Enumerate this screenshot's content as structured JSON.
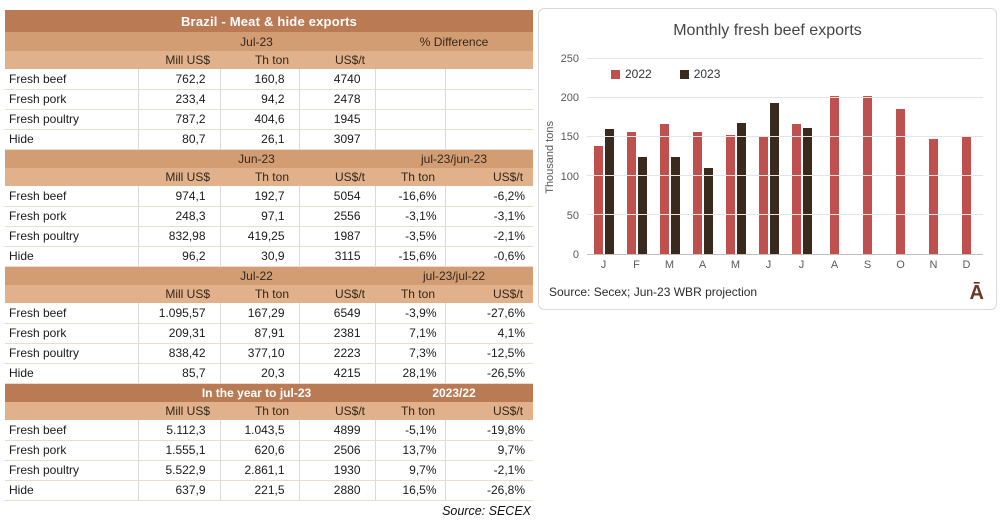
{
  "table": {
    "title": "Brazil - Meat & hide exports",
    "source": "Source: SECEX",
    "sections": [
      {
        "period": "Jul-23",
        "diff_label": "% Difference",
        "style": "tan",
        "col_headers": [
          "Mill US$",
          "Th ton",
          "US$/t",
          "",
          ""
        ],
        "rows": [
          {
            "label": "Fresh beef",
            "values": [
              "762,2",
              "160,8",
              "4740",
              "",
              ""
            ]
          },
          {
            "label": "Fresh pork",
            "values": [
              "233,4",
              "94,2",
              "2478",
              "",
              ""
            ]
          },
          {
            "label": "Fresh poultry",
            "values": [
              "787,2",
              "404,6",
              "1945",
              "",
              ""
            ]
          },
          {
            "label": "Hide",
            "values": [
              "80,7",
              "26,1",
              "3097",
              "",
              ""
            ]
          }
        ]
      },
      {
        "period": "Jun-23",
        "diff_label": "jul-23/jun-23",
        "style": "tan",
        "col_headers": [
          "Mill US$",
          "Th ton",
          "US$/t",
          "Th ton",
          "US$/t"
        ],
        "rows": [
          {
            "label": "Fresh beef",
            "values": [
              "974,1",
              "192,7",
              "5054",
              "-16,6%",
              "-6,2%"
            ]
          },
          {
            "label": "Fresh pork",
            "values": [
              "248,3",
              "97,1",
              "2556",
              "-3,1%",
              "-3,1%"
            ]
          },
          {
            "label": "Fresh poultry",
            "values": [
              "832,98",
              "419,25",
              "1987",
              "-3,5%",
              "-2,1%"
            ]
          },
          {
            "label": "Hide",
            "values": [
              "96,2",
              "30,9",
              "3115",
              "-15,6%",
              "-0,6%"
            ]
          }
        ]
      },
      {
        "period": "Jul-22",
        "diff_label": "jul-23/jul-22",
        "style": "tan",
        "col_headers": [
          "Mill US$",
          "Th ton",
          "US$/t",
          "Th ton",
          "US$/t"
        ],
        "rows": [
          {
            "label": "Fresh beef",
            "values": [
              "1.095,57",
              "167,29",
              "6549",
              "-3,9%",
              "-27,6%"
            ]
          },
          {
            "label": "Fresh pork",
            "values": [
              "209,31",
              "87,91",
              "2381",
              "7,1%",
              "4,1%"
            ]
          },
          {
            "label": "Fresh poultry",
            "values": [
              "838,42",
              "377,10",
              "2223",
              "7,3%",
              "-12,5%"
            ]
          },
          {
            "label": "Hide",
            "values": [
              "85,7",
              "20,3",
              "4215",
              "28,1%",
              "-26,5%"
            ]
          }
        ]
      },
      {
        "period": "In the year to jul-23",
        "diff_label": "2023/22",
        "style": "dark",
        "col_headers": [
          "Mill US$",
          "Th ton",
          "US$/t",
          "Th ton",
          "US$/t"
        ],
        "rows": [
          {
            "label": "Fresh beef",
            "values": [
              "5.112,3",
              "1.043,5",
              "4899",
              "-5,1%",
              "-19,8%"
            ]
          },
          {
            "label": "Fresh pork",
            "values": [
              "1.555,1",
              "620,6",
              "2506",
              "13,7%",
              "9,7%"
            ]
          },
          {
            "label": "Fresh poultry",
            "values": [
              "5.522,9",
              "2.861,1",
              "1930",
              "9,7%",
              "-2,1%"
            ]
          },
          {
            "label": "Hide",
            "values": [
              "637,9",
              "221,5",
              "2880",
              "16,5%",
              "-26,8%"
            ]
          }
        ]
      }
    ]
  },
  "chart": {
    "source": "Source: Secex; Jun-23 WBR projection",
    "watermark": "Ā"
  },
  "chart_data": {
    "type": "bar",
    "title": "Monthly fresh beef exports",
    "ylabel": "Thousand tons",
    "xlabel": "",
    "categories": [
      "J",
      "F",
      "M",
      "A",
      "M",
      "J",
      "J",
      "A",
      "S",
      "O",
      "N",
      "D"
    ],
    "series": [
      {
        "name": "2022",
        "color": "#C0504D",
        "values": [
          139,
          157,
          167,
          156,
          152,
          151,
          167,
          203,
          202,
          186,
          147,
          151
        ]
      },
      {
        "name": "2023",
        "color": "#3A2A1E",
        "values": [
          160,
          125,
          124,
          110,
          168,
          193,
          161,
          null,
          null,
          null,
          null,
          null
        ]
      }
    ],
    "ylim": [
      0,
      250
    ],
    "yticks": [
      0,
      50,
      100,
      150,
      200,
      250
    ],
    "grid": true,
    "legend_position": "top-left-inside"
  }
}
